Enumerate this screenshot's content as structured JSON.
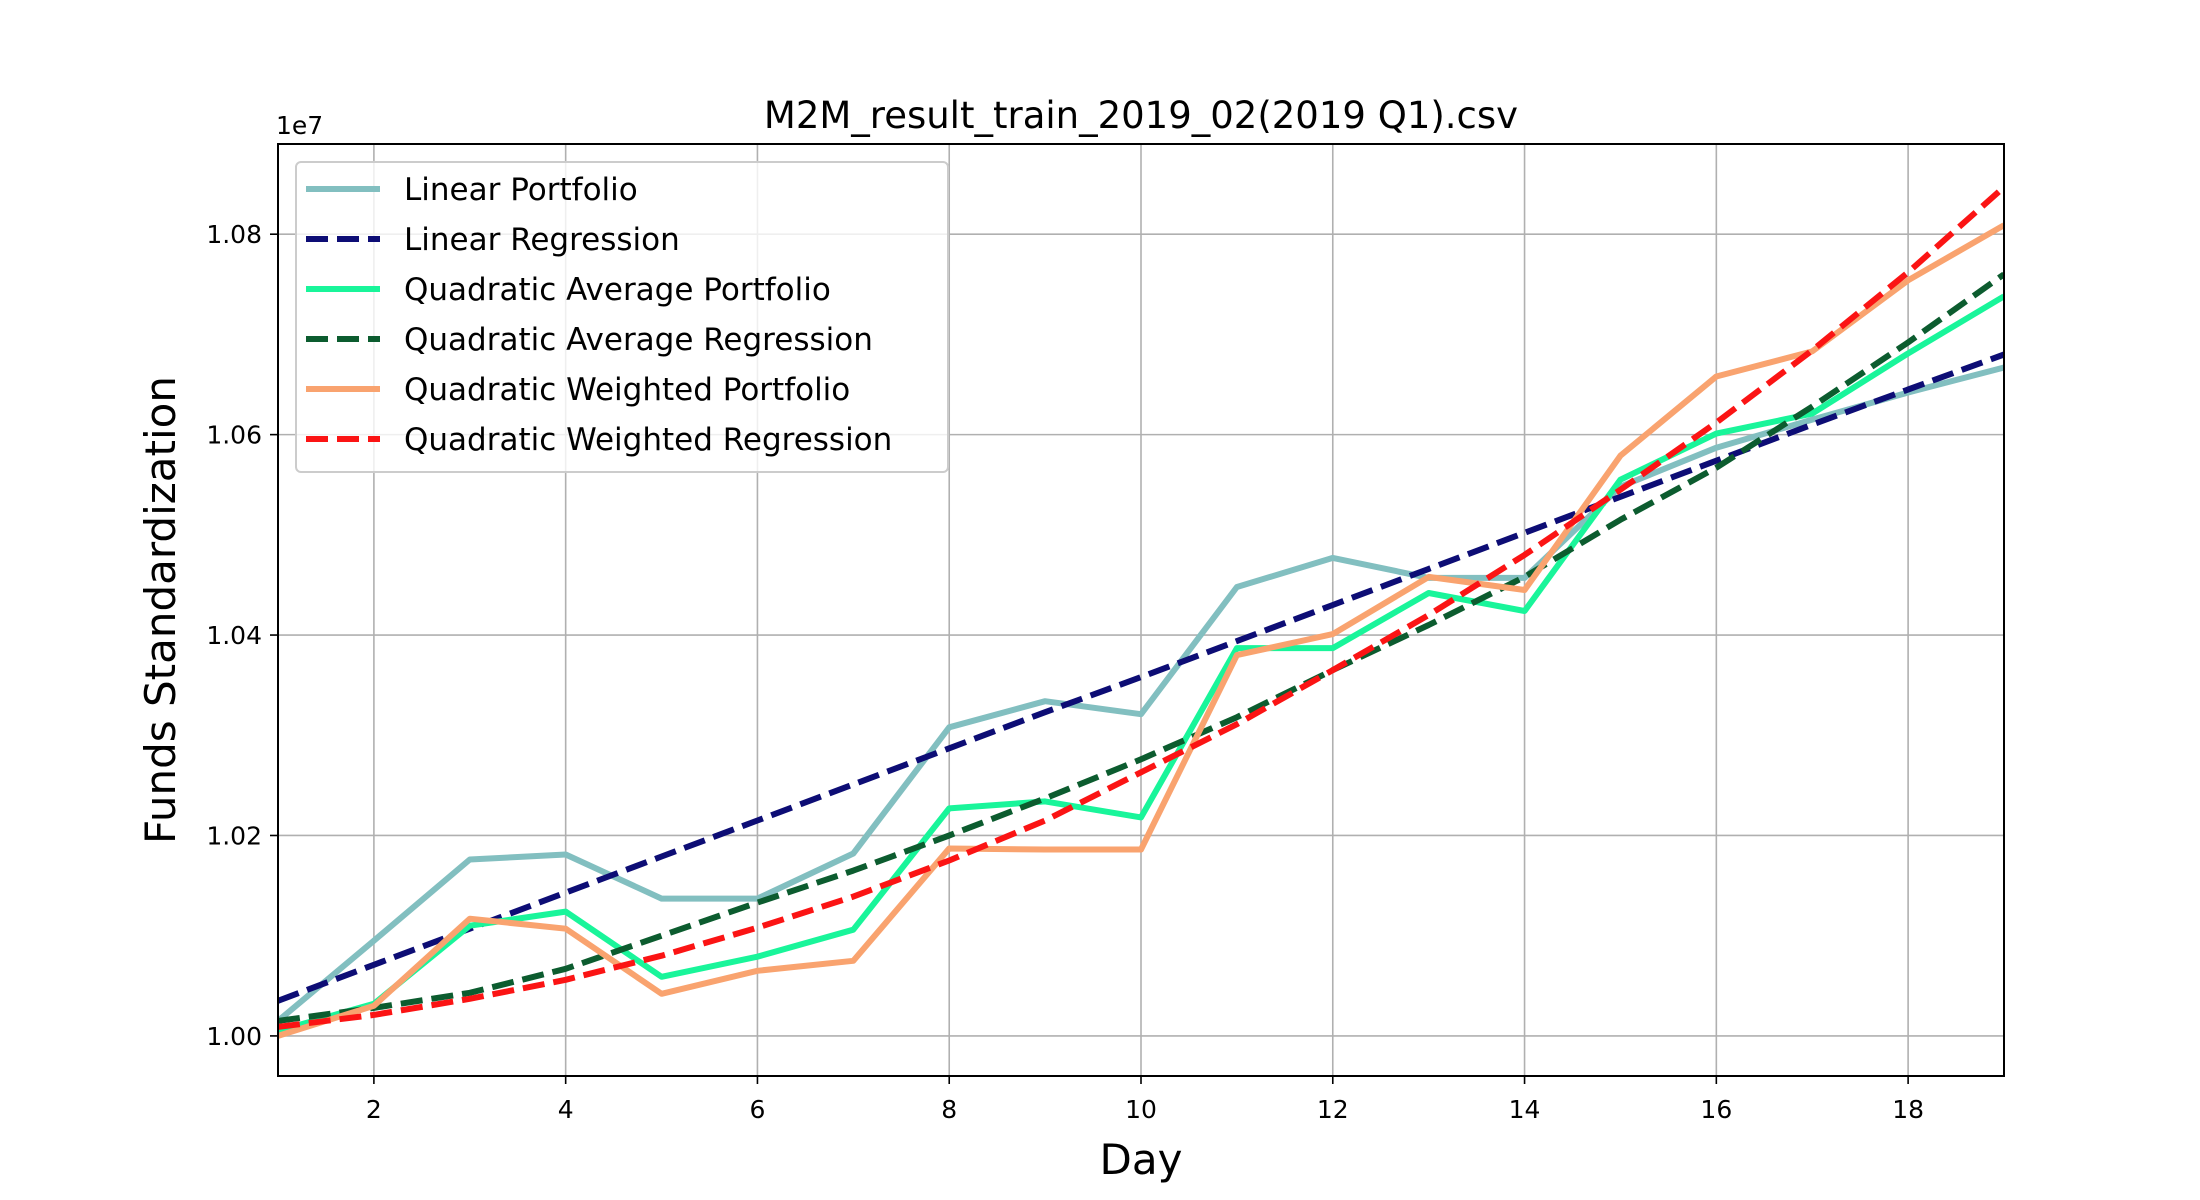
{
  "chart_data": {
    "type": "line",
    "title": "M2M_result_train_2019_02(2019 Q1).csv",
    "xlabel": "Day",
    "ylabel": "Funds Standardization",
    "y_offset_label": "1e7",
    "xlim": [
      1,
      19
    ],
    "ylim": [
      0.996,
      1.089
    ],
    "x_ticks": [
      2,
      4,
      6,
      8,
      10,
      12,
      14,
      16,
      18
    ],
    "y_ticks": [
      1.0,
      1.02,
      1.04,
      1.06,
      1.08
    ],
    "y_tick_labels": [
      "1.00",
      "1.02",
      "1.04",
      "1.06",
      "1.08"
    ],
    "grid": true,
    "legend_position": "upper-left",
    "x": [
      1,
      2,
      3,
      4,
      5,
      6,
      7,
      8,
      9,
      10,
      11,
      12,
      13,
      14,
      15,
      16,
      17,
      18,
      19
    ],
    "series": [
      {
        "name": "Linear Portfolio",
        "style": "solid",
        "color": "#82bfc0",
        "values": [
          1.0015,
          1.0095,
          1.0176,
          1.0181,
          1.0137,
          1.0137,
          1.0182,
          1.0308,
          1.0334,
          1.0321,
          1.0448,
          1.0477,
          1.0457,
          1.0457,
          1.0548,
          1.0587,
          1.0615,
          1.0642,
          1.0667
        ]
      },
      {
        "name": "Linear Regression",
        "style": "dashed",
        "color": "#0d0d75",
        "values": [
          1.0035,
          1.0071,
          1.0107,
          1.0143,
          1.0179,
          1.0215,
          1.0251,
          1.0287,
          1.0323,
          1.0358,
          1.0394,
          1.043,
          1.0466,
          1.0502,
          1.0538,
          1.0574,
          1.061,
          1.0645,
          1.068
        ]
      },
      {
        "name": "Quadratic Average Portfolio",
        "style": "solid",
        "color": "#19f59a",
        "values": [
          1.0005,
          1.0032,
          1.011,
          1.0124,
          1.0059,
          1.0079,
          1.0106,
          1.0227,
          1.0234,
          1.0218,
          1.0387,
          1.0387,
          1.0442,
          1.0424,
          1.0555,
          1.0601,
          1.0621,
          1.0681,
          1.0738
        ]
      },
      {
        "name": "Quadratic Average Regression",
        "style": "dashed",
        "color": "#0c5c2f",
        "values": [
          1.0015,
          1.0028,
          1.0043,
          1.0067,
          1.01,
          1.0133,
          1.0165,
          1.02,
          1.0237,
          1.0276,
          1.0318,
          1.0365,
          1.041,
          1.0458,
          1.0515,
          1.0567,
          1.0628,
          1.0692,
          1.076
        ]
      },
      {
        "name": "Quadratic Weighted Portfolio",
        "style": "solid",
        "color": "#f9a36f",
        "values": [
          1.0,
          1.003,
          1.0117,
          1.0107,
          1.0042,
          1.0065,
          1.0075,
          1.0187,
          1.0186,
          1.0186,
          1.038,
          1.0401,
          1.0458,
          1.0445,
          1.0579,
          1.0658,
          1.0683,
          1.0754,
          1.0809
        ]
      },
      {
        "name": "Quadratic Weighted Regression",
        "style": "dashed",
        "color": "#fb1414",
        "values": [
          1.0009,
          1.0021,
          1.0037,
          1.0056,
          1.008,
          1.0108,
          1.0139,
          1.0175,
          1.0215,
          1.0263,
          1.0311,
          1.0365,
          1.042,
          1.048,
          1.0545,
          1.0612,
          1.0684,
          1.0762,
          1.0847
        ]
      }
    ]
  }
}
